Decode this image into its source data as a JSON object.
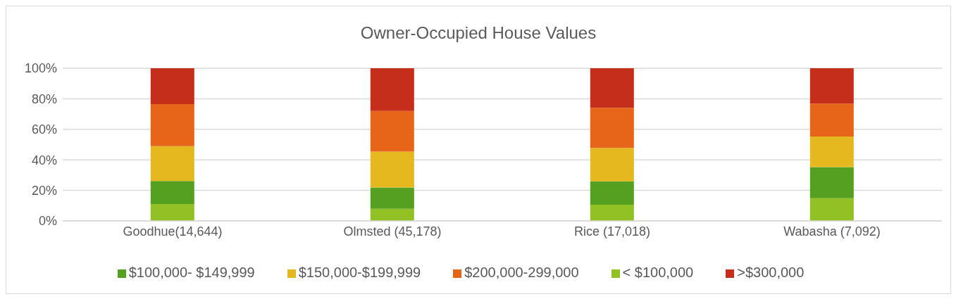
{
  "chart_data": {
    "type": "bar",
    "title": "Owner-Occupied House Values",
    "stacked": true,
    "categories": [
      "Goodhue(14,644)",
      "Olmsted (45,178)",
      "Rice (17,018)",
      "Wabasha (7,092)"
    ],
    "series": [
      {
        "name": "< $100,000",
        "color": "#92c125",
        "values": [
          11.1,
          7.9,
          10.6,
          14.9
        ]
      },
      {
        "name": "$100,000- $149,999",
        "color": "#55a020",
        "values": [
          15.1,
          14.0,
          15.3,
          20.3
        ]
      },
      {
        "name": "$150,000-$199,999",
        "color": "#e5b81f",
        "values": [
          22.8,
          23.5,
          21.9,
          20.1
        ]
      },
      {
        "name": "$200,000-299,000",
        "color": "#e76518",
        "values": [
          27.5,
          26.6,
          26.3,
          21.5
        ]
      },
      {
        "name": ">$300,000",
        "color": "#c42e1a",
        "values": [
          23.5,
          28.0,
          25.9,
          23.2
        ]
      }
    ],
    "ylim": [
      0,
      100
    ],
    "yticks": [
      {
        "value": 0,
        "label": "0%"
      },
      {
        "value": 20,
        "label": "20%"
      },
      {
        "value": 40,
        "label": "40%"
      },
      {
        "value": 60,
        "label": "60%"
      },
      {
        "value": 80,
        "label": "80%"
      },
      {
        "value": 100,
        "label": "100%"
      }
    ],
    "grid": "y",
    "legend": "bottom"
  }
}
